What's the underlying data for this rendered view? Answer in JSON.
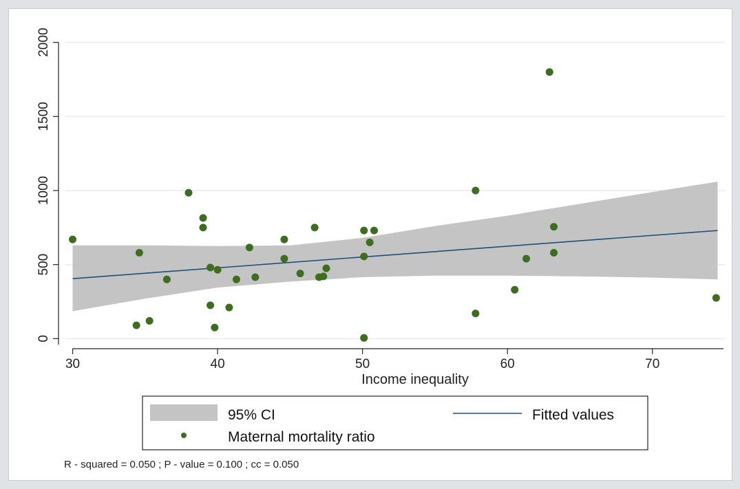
{
  "chart_data": {
    "type": "scatter",
    "title": "",
    "xlabel": "Income inequality",
    "ylabel": "",
    "xlim": [
      29.5,
      75
    ],
    "ylim": [
      -40,
      2040
    ],
    "x_ticks": [
      30,
      40,
      50,
      60,
      70
    ],
    "y_ticks": [
      0,
      500,
      1000,
      1500,
      2000
    ],
    "grid": "horizontal",
    "legend_position": "bottom",
    "legend": {
      "ci_label": "95% CI",
      "fit_label": "Fitted values",
      "points_label": "Maternal mortality ratio"
    },
    "note": "R - squared = 0.050 ; P - value = 0.100 ; cc = 0.050",
    "colors": {
      "points": "#3d6e1e",
      "fit_line": "#1f4e79",
      "ci_band": "#c4c4c4",
      "grid": "#e8ecee"
    },
    "fit": {
      "x": [
        30,
        74.5
      ],
      "y": [
        405,
        730
      ]
    },
    "ci": {
      "x": [
        30,
        35,
        40,
        45,
        50,
        55,
        60,
        65,
        70,
        74.5
      ],
      "lower": [
        185,
        270,
        345,
        385,
        415,
        425,
        425,
        420,
        412,
        400
      ],
      "upper": [
        630,
        630,
        625,
        630,
        680,
        760,
        830,
        910,
        990,
        1060
      ]
    },
    "series": [
      {
        "name": "Maternal mortality ratio",
        "points": [
          [
            30,
            670
          ],
          [
            34.4,
            90
          ],
          [
            34.6,
            580
          ],
          [
            35.3,
            120
          ],
          [
            36.5,
            400
          ],
          [
            38,
            985
          ],
          [
            39,
            815
          ],
          [
            39,
            750
          ],
          [
            39.5,
            480
          ],
          [
            39.5,
            225
          ],
          [
            39.8,
            75
          ],
          [
            40,
            465
          ],
          [
            40.8,
            210
          ],
          [
            41.3,
            400
          ],
          [
            42.2,
            615
          ],
          [
            42.6,
            415
          ],
          [
            44.6,
            670
          ],
          [
            44.6,
            540
          ],
          [
            45.7,
            440
          ],
          [
            46.7,
            750
          ],
          [
            47,
            415
          ],
          [
            47.3,
            420
          ],
          [
            47.5,
            475
          ],
          [
            50.1,
            730
          ],
          [
            50.1,
            555
          ],
          [
            50.1,
            5
          ],
          [
            50.5,
            650
          ],
          [
            50.8,
            730
          ],
          [
            57.8,
            1000
          ],
          [
            57.8,
            170
          ],
          [
            60.5,
            330
          ],
          [
            61.3,
            540
          ],
          [
            62.9,
            1800
          ],
          [
            63.2,
            755
          ],
          [
            63.2,
            580
          ],
          [
            74.4,
            275
          ]
        ]
      }
    ]
  }
}
